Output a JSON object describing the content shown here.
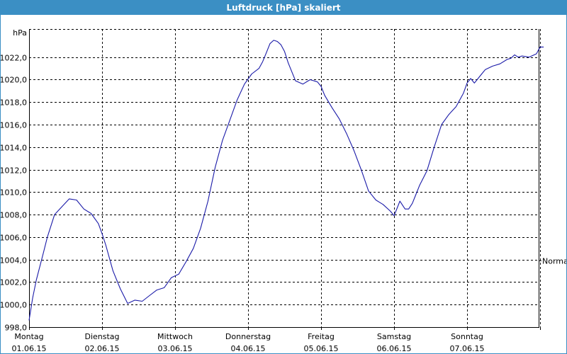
{
  "window": {
    "title": "Luftdruck [hPa] skaliert"
  },
  "colors": {
    "title_bar": "#3b8fc4",
    "series": "#1a1aa8",
    "grid": "#000000"
  },
  "chart_data": {
    "type": "line",
    "title": "Luftdruck [hPa] skaliert",
    "ylabel": "hPa",
    "xlabel": "",
    "ylim": [
      998.0,
      1024.5
    ],
    "y_ticks": [
      998.0,
      1000.0,
      1002.0,
      1004.0,
      1006.0,
      1008.0,
      1010.0,
      1012.0,
      1014.0,
      1016.0,
      1018.0,
      1020.0,
      1022.0
    ],
    "y_tick_labels": [
      "998,0",
      "1000,0",
      "1002,0",
      "1004,0",
      "1006,0",
      "1008,0",
      "1010,0",
      "1012,0",
      "1014,0",
      "1016,0",
      "1018,0",
      "1020,0",
      "1022,0"
    ],
    "x_day_labels": [
      {
        "day": "Montag",
        "date": "01.06.15"
      },
      {
        "day": "Dienstag",
        "date": "02.06.15"
      },
      {
        "day": "Mittwoch",
        "date": "03.06.15"
      },
      {
        "day": "Donnerstag",
        "date": "04.06.15"
      },
      {
        "day": "Freitag",
        "date": "05.06.15"
      },
      {
        "day": "Samstag",
        "date": "06.06.15"
      },
      {
        "day": "Sonntag",
        "date": "07.06.15"
      }
    ],
    "xlim": [
      0,
      7.05
    ],
    "grid": true,
    "annotations": [
      {
        "text": "Normal",
        "y": 1003.9
      }
    ],
    "series": [
      {
        "x": [
          0.0,
          0.05,
          0.1,
          0.2,
          0.25,
          0.35,
          0.45,
          0.55,
          0.65,
          0.75,
          0.8,
          0.85,
          0.95,
          1.0,
          1.05,
          1.15,
          1.25,
          1.35,
          1.45,
          1.55,
          1.65,
          1.75,
          1.85,
          1.95,
          2.05,
          2.15,
          2.25,
          2.35,
          2.45,
          2.55,
          2.65,
          2.75,
          2.85,
          2.95,
          3.05,
          3.15,
          3.2,
          3.25,
          3.3,
          3.35,
          3.4,
          3.45,
          3.5,
          3.55,
          3.65,
          3.75,
          3.85,
          3.95,
          4.0,
          4.05,
          4.15,
          4.25,
          4.35,
          4.45,
          4.55,
          4.65,
          4.75,
          4.8,
          4.85,
          4.95,
          5.0,
          5.05,
          5.08,
          5.15,
          5.2,
          5.25,
          5.3,
          5.35,
          5.45,
          5.55,
          5.65,
          5.75,
          5.85,
          5.95,
          6.0,
          6.05,
          6.1,
          6.15,
          6.2,
          6.25,
          6.35,
          6.45,
          6.55,
          6.6,
          6.65,
          6.7,
          6.75,
          6.85,
          6.95,
          7.0,
          7.05
        ],
        "values": [
          998.6,
          1000.6,
          1002.2,
          1004.7,
          1006.0,
          1008.0,
          1008.7,
          1009.4,
          1009.3,
          1008.5,
          1008.3,
          1008.1,
          1007.2,
          1006.3,
          1005.3,
          1003.0,
          1001.4,
          1000.1,
          1000.4,
          1000.3,
          1000.8,
          1001.3,
          1001.5,
          1002.4,
          1002.7,
          1003.8,
          1005.0,
          1006.8,
          1009.2,
          1012.2,
          1014.6,
          1016.4,
          1018.2,
          1019.6,
          1020.5,
          1021.0,
          1021.6,
          1022.4,
          1023.2,
          1023.5,
          1023.4,
          1023.1,
          1022.5,
          1021.5,
          1019.9,
          1019.6,
          1020.0,
          1019.8,
          1019.4,
          1018.6,
          1017.5,
          1016.5,
          1015.2,
          1013.7,
          1012.0,
          1010.1,
          1009.3,
          1009.1,
          1008.9,
          1008.3,
          1007.9,
          1008.7,
          1009.2,
          1008.5,
          1008.5,
          1009.0,
          1009.8,
          1010.6,
          1011.9,
          1014.0,
          1016.0,
          1016.9,
          1017.6,
          1018.8,
          1019.7,
          1020.1,
          1019.7,
          1020.1,
          1020.5,
          1020.9,
          1021.2,
          1021.4,
          1021.8,
          1021.9,
          1022.2,
          1022.0,
          1022.1,
          1022.0,
          1022.3,
          1022.9,
          1022.9
        ]
      }
    ]
  }
}
